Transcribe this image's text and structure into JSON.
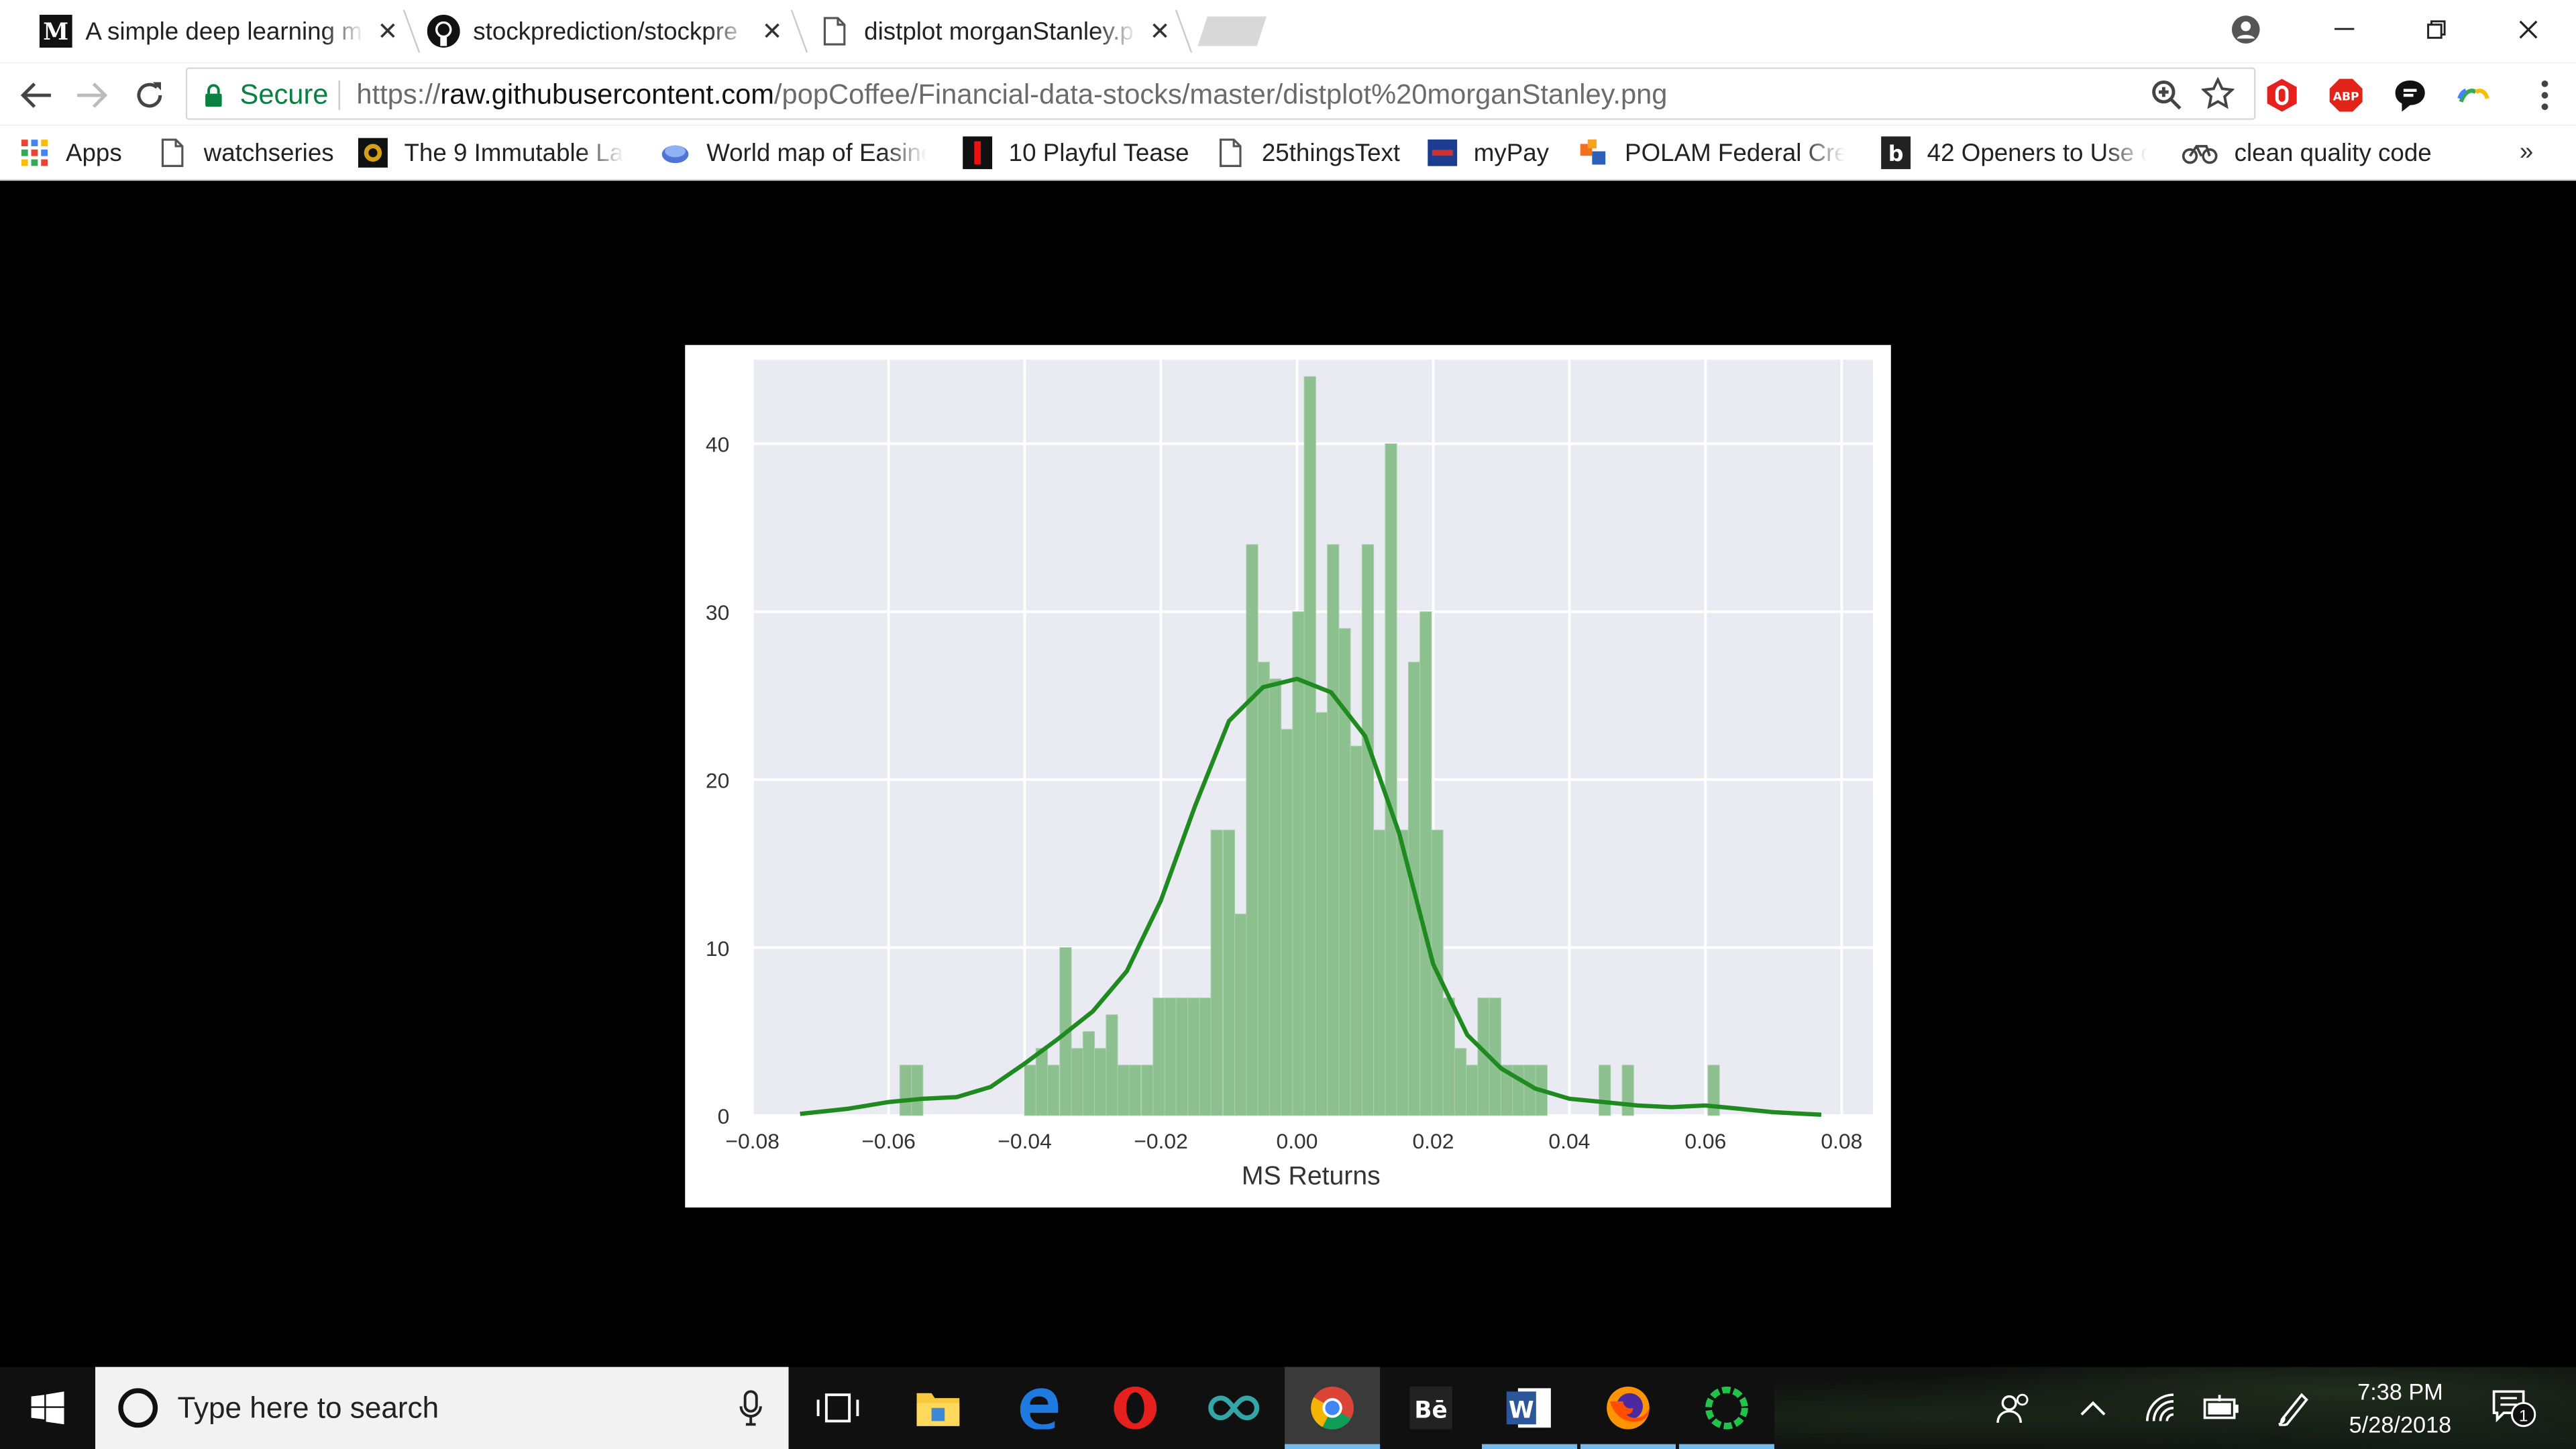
{
  "tabs": [
    {
      "title": "A simple deep learning m",
      "favicon": "medium-icon"
    },
    {
      "title": "stockprediction/stockpre",
      "favicon": "github-icon"
    },
    {
      "title": "distplot morganStanley.p",
      "favicon": "page-icon"
    }
  ],
  "omnibox": {
    "secure_label": "Secure",
    "url_scheme": "https://",
    "url_host": "raw.githubusercontent.com",
    "url_path": "/popCoffee/Financial-data-stocks/master/distplot%20morganStanley.png"
  },
  "bookmarks": {
    "apps_label": "Apps",
    "items": [
      {
        "label": "watchseries",
        "icon": "page-icon"
      },
      {
        "label": "The 9 Immutable La",
        "icon": "emblem-icon"
      },
      {
        "label": "World map of Easine",
        "icon": "globe-icon"
      },
      {
        "label": "10 Playful Tease",
        "icon": "red-bookmark-icon"
      },
      {
        "label": "25thingsText",
        "icon": "page-icon"
      },
      {
        "label": "myPay",
        "icon": "mypay-icon"
      },
      {
        "label": "POLAM Federal Cred",
        "icon": "polam-icon"
      },
      {
        "label": "42 Openers to Use o",
        "icon": "b-icon"
      },
      {
        "label": "clean quality code",
        "icon": "bike-icon"
      }
    ],
    "more_label": "»"
  },
  "chart_data": {
    "type": "histogram",
    "xlabel": "MS Returns",
    "ylabel": "",
    "xlim": [
      -0.08,
      0.08
    ],
    "ylim": [
      0,
      45
    ],
    "x_ticks": [
      -0.08,
      -0.06,
      -0.04,
      -0.02,
      0.0,
      0.02,
      0.04,
      0.06,
      0.08
    ],
    "x_tick_labels": [
      "−0.08",
      "−0.06",
      "−0.04",
      "−0.02",
      "0.00",
      "0.02",
      "0.04",
      "0.06",
      "0.08"
    ],
    "y_ticks": [
      0,
      10,
      20,
      30,
      40
    ],
    "y_tick_labels": [
      "0",
      "10",
      "20",
      "30",
      "40"
    ],
    "grid": true,
    "bins": [
      [
        -0.0575,
        3
      ],
      [
        -0.0558,
        3
      ],
      [
        -0.0392,
        3
      ],
      [
        -0.0375,
        4
      ],
      [
        -0.0358,
        3
      ],
      [
        -0.034,
        10
      ],
      [
        -0.0323,
        4
      ],
      [
        -0.0306,
        5
      ],
      [
        -0.0289,
        4
      ],
      [
        -0.0272,
        6
      ],
      [
        -0.0255,
        3
      ],
      [
        -0.0238,
        3
      ],
      [
        -0.022,
        3
      ],
      [
        -0.0203,
        7
      ],
      [
        -0.0186,
        7
      ],
      [
        -0.0169,
        7
      ],
      [
        -0.0152,
        7
      ],
      [
        -0.0135,
        7
      ],
      [
        -0.0118,
        17
      ],
      [
        -0.01,
        17
      ],
      [
        -0.0083,
        12
      ],
      [
        -0.0066,
        34
      ],
      [
        -0.0049,
        27
      ],
      [
        -0.0032,
        26
      ],
      [
        -0.0015,
        23
      ],
      [
        0.0002,
        30
      ],
      [
        0.0019,
        44
      ],
      [
        0.0036,
        24
      ],
      [
        0.0053,
        34
      ],
      [
        0.007,
        29
      ],
      [
        0.0087,
        22
      ],
      [
        0.0104,
        34
      ],
      [
        0.0121,
        17
      ],
      [
        0.0138,
        40
      ],
      [
        0.0155,
        17
      ],
      [
        0.0172,
        27
      ],
      [
        0.0189,
        30
      ],
      [
        0.0206,
        17
      ],
      [
        0.0223,
        7
      ],
      [
        0.024,
        4
      ],
      [
        0.0257,
        3
      ],
      [
        0.0274,
        7
      ],
      [
        0.0291,
        7
      ],
      [
        0.0308,
        3
      ],
      [
        0.0325,
        3
      ],
      [
        0.0342,
        3
      ],
      [
        0.0359,
        3
      ],
      [
        0.0452,
        3
      ],
      [
        0.0486,
        3
      ],
      [
        0.0612,
        3
      ]
    ],
    "bin_width": 0.0017,
    "kde_curve": [
      [
        -0.073,
        0.1
      ],
      [
        -0.066,
        0.4
      ],
      [
        -0.06,
        0.8
      ],
      [
        -0.055,
        1.0
      ],
      [
        -0.05,
        1.1
      ],
      [
        -0.045,
        1.7
      ],
      [
        -0.04,
        3.1
      ],
      [
        -0.035,
        4.6
      ],
      [
        -0.03,
        6.2
      ],
      [
        -0.025,
        8.6
      ],
      [
        -0.02,
        12.8
      ],
      [
        -0.015,
        18.4
      ],
      [
        -0.01,
        23.5
      ],
      [
        -0.005,
        25.5
      ],
      [
        0.0,
        26.0
      ],
      [
        0.005,
        25.2
      ],
      [
        0.01,
        22.6
      ],
      [
        0.015,
        16.8
      ],
      [
        0.02,
        9.0
      ],
      [
        0.025,
        4.8
      ],
      [
        0.03,
        2.8
      ],
      [
        0.035,
        1.6
      ],
      [
        0.04,
        1.0
      ],
      [
        0.045,
        0.8
      ],
      [
        0.05,
        0.6
      ],
      [
        0.055,
        0.5
      ],
      [
        0.06,
        0.6
      ],
      [
        0.065,
        0.4
      ],
      [
        0.07,
        0.2
      ],
      [
        0.077,
        0.05
      ]
    ],
    "bar_color": "#8cc08f",
    "kde_color": "#1f8a1f",
    "plot_bg": "#eaeaf2"
  },
  "taskbar": {
    "search_placeholder": "Type here to search",
    "time": "7:38 PM",
    "date": "5/28/2018",
    "notification_count": "1"
  }
}
